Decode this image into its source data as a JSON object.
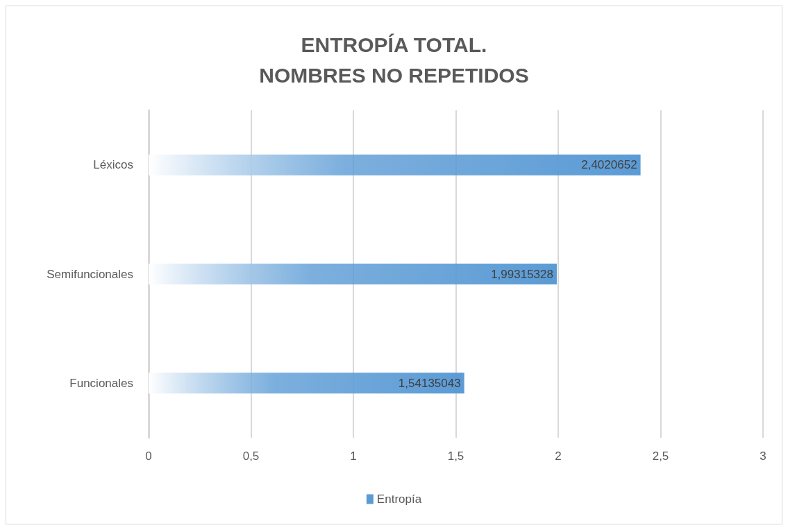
{
  "chart_data": {
    "type": "bar",
    "orientation": "horizontal",
    "title": "ENTROPÍA TOTAL.\nNOMBRES NO REPETIDOS",
    "categories": [
      "Léxicos",
      "Semifuncionales",
      "Funcionales"
    ],
    "series": [
      {
        "name": "Entropía",
        "color": "#5b9bd5",
        "values": [
          2.4020652,
          1.99315328,
          1.54135043
        ],
        "value_labels": [
          "2,4020652",
          "1,99315328",
          "1,54135043"
        ]
      }
    ],
    "xlim": [
      0,
      3
    ],
    "xticks": [
      0,
      {
        "value": 0.5,
        "label": "0,5"
      },
      1,
      {
        "value": 1.5,
        "label": "1,5"
      },
      2,
      {
        "value": 2.5,
        "label": "2,5"
      },
      3
    ],
    "grid": "x",
    "legend": "bottom"
  }
}
